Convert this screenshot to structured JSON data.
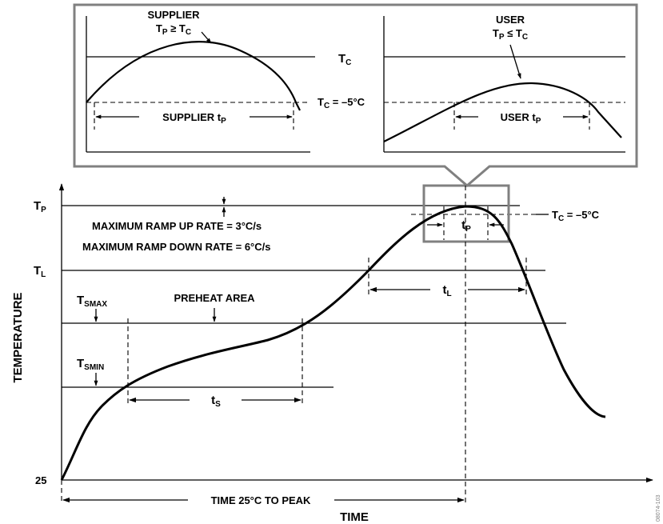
{
  "inset": {
    "supplier_title": "SUPPLIER",
    "supplier_cond_main": "T",
    "supplier_cond_sub1": "P",
    "supplier_cond_op": " ≥ T",
    "supplier_cond_sub2": "C",
    "supplier_tp_main": "SUPPLIER t",
    "supplier_tp_sub": "P",
    "user_title": "USER",
    "user_cond_main": "T",
    "user_cond_sub1": "P",
    "user_cond_op": " ≤ T",
    "user_cond_sub2": "C",
    "user_tp_main": "USER t",
    "user_tp_sub": "P",
    "tc_main": "T",
    "tc_sub": "C",
    "tc5_main": "T",
    "tc5_sub": "C",
    "tc5_rest": " = –5°C"
  },
  "main": {
    "tp_main": "T",
    "tp_sub": "P",
    "tl_main": "T",
    "tl_sub": "L",
    "tsmax_main": "T",
    "tsmax_sub": "SMAX",
    "tsmin_main": "T",
    "tsmin_sub": "SMIN",
    "y25": "25",
    "ramp_up": "MAXIMUM RAMP UP RATE = 3°C/s",
    "ramp_down": "MAXIMUM RAMP DOWN RATE = 6°C/s",
    "preheat": "PREHEAT AREA",
    "ts_main": "t",
    "ts_sub": "S",
    "tl_dur_main": "t",
    "tl_dur_sub": "L",
    "tp_dur_main": "t",
    "tp_dur_sub": "P",
    "tc5_main": "T",
    "tc5_sub": "C",
    "tc5_rest": " = –5°C",
    "time_to_peak": "TIME 25°C TO PEAK",
    "x_axis_label": "TIME",
    "y_axis_label": "TEMPERATURE",
    "figure_id": "08074-103"
  }
}
